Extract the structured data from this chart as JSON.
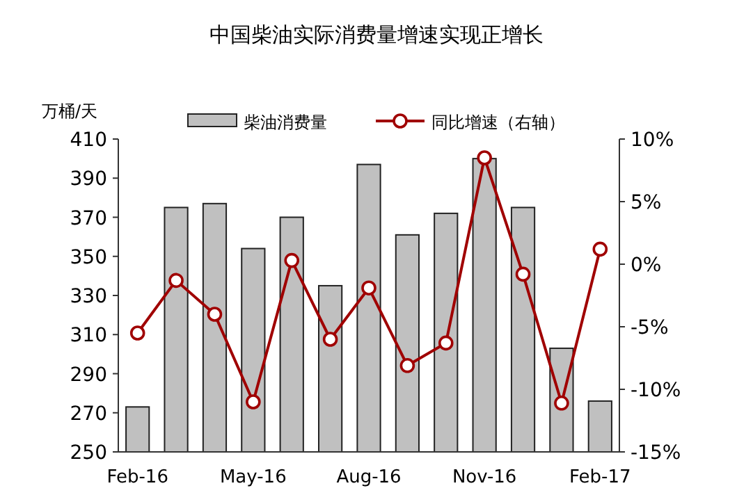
{
  "chart_data": {
    "type": "bar",
    "title": "中国柴油实际消费量增速实现正增长",
    "ylabel": "万桶/天",
    "categories": [
      "Feb-16",
      null,
      null,
      "May-16",
      null,
      null,
      "Aug-16",
      null,
      null,
      "Nov-16",
      null,
      null,
      "Feb-17"
    ],
    "series": [
      {
        "name": "柴油消费量",
        "color": "#c0c0c0",
        "values": [
          273,
          375,
          377,
          354,
          370,
          335,
          397,
          361,
          372,
          400,
          375,
          303,
          276
        ]
      },
      {
        "name": "同比增速（右轴）",
        "type": "line",
        "axis": "y2",
        "color": "#a00000",
        "marker": "circle",
        "values": [
          -5.5,
          -1.3,
          -4.0,
          -11.0,
          0.3,
          -6.0,
          -1.9,
          -8.1,
          -6.3,
          8.5,
          -0.8,
          -11.1,
          1.2
        ]
      }
    ],
    "ylim": [
      250,
      410
    ],
    "yticks": [
      250,
      270,
      290,
      310,
      330,
      350,
      370,
      390,
      410
    ],
    "y2lim": [
      -15,
      10
    ],
    "y2ticks": [
      {
        "value": -15,
        "label": "-15%"
      },
      {
        "value": -10,
        "label": "-10%"
      },
      {
        "value": -5,
        "label": "-5%"
      },
      {
        "value": 0,
        "label": "0%"
      },
      {
        "value": 5,
        "label": "5%"
      },
      {
        "value": 10,
        "label": "10%"
      }
    ],
    "legend": "top",
    "grid": false
  }
}
